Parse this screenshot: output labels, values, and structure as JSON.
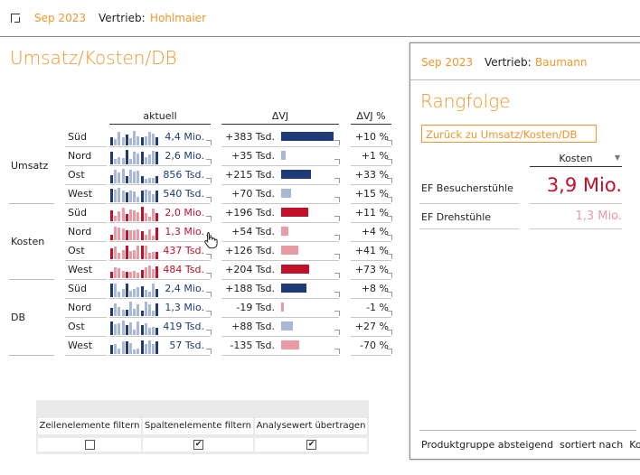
{
  "header": {
    "period": "Sep 2023",
    "label": "Vertrieb:",
    "person": "Hohlmaier"
  },
  "main": {
    "title": "Umsatz/Kosten/DB",
    "columns": {
      "aktuell": "aktuell",
      "dvj": "ΔVJ",
      "dvjpct": "ΔVJ %"
    },
    "groups": [
      {
        "name": "Umsatz",
        "rows": [
          {
            "region": "Süd",
            "aktuell": "4,4 Mio.",
            "dvj": "+383 Tsd.",
            "dvjpct": "+10 %",
            "dvj_num": 383,
            "tone": "blue"
          },
          {
            "region": "Nord",
            "aktuell": "2,6 Mio.",
            "dvj": "+35 Tsd.",
            "dvjpct": "+1 %",
            "dvj_num": 35,
            "tone": "blue"
          },
          {
            "region": "Ost",
            "aktuell": "856 Tsd.",
            "dvj": "+215 Tsd.",
            "dvjpct": "+33 %",
            "dvj_num": 215,
            "tone": "blue"
          },
          {
            "region": "West",
            "aktuell": "540 Tsd.",
            "dvj": "+70 Tsd.",
            "dvjpct": "+15 %",
            "dvj_num": 70,
            "tone": "blue"
          }
        ]
      },
      {
        "name": "Kosten",
        "rows": [
          {
            "region": "Süd",
            "aktuell": "2,0 Mio.",
            "dvj": "+196 Tsd.",
            "dvjpct": "+11 %",
            "dvj_num": 196,
            "tone": "red"
          },
          {
            "region": "Nord",
            "aktuell": "1,3 Mio.",
            "dvj": "+54 Tsd.",
            "dvjpct": "+4 %",
            "dvj_num": 54,
            "tone": "red"
          },
          {
            "region": "Ost",
            "aktuell": "437 Tsd.",
            "dvj": "+126 Tsd.",
            "dvjpct": "+41 %",
            "dvj_num": 126,
            "tone": "red"
          },
          {
            "region": "West",
            "aktuell": "484 Tsd.",
            "dvj": "+204 Tsd.",
            "dvjpct": "+73 %",
            "dvj_num": 204,
            "tone": "red"
          }
        ]
      },
      {
        "name": "DB",
        "rows": [
          {
            "region": "Süd",
            "aktuell": "2,4 Mio.",
            "dvj": "+188 Tsd.",
            "dvjpct": "+8 %",
            "dvj_num": 188,
            "tone": "blue"
          },
          {
            "region": "Nord",
            "aktuell": "1,3 Mio.",
            "dvj": "-19 Tsd.",
            "dvjpct": "-1 %",
            "dvj_num": -19,
            "tone": "blue"
          },
          {
            "region": "Ost",
            "aktuell": "419 Tsd.",
            "dvj": "+88 Tsd.",
            "dvjpct": "+27 %",
            "dvj_num": 88,
            "tone": "blue"
          },
          {
            "region": "West",
            "aktuell": "57 Tsd.",
            "dvj": "-135 Tsd.",
            "dvjpct": "-70 %",
            "dvj_num": -135,
            "tone": "blue"
          }
        ]
      }
    ]
  },
  "options": {
    "headers": [
      "Zeilenelemente filtern",
      "Spaltenelemente filtern",
      "Analysewert übertragen"
    ],
    "checked": [
      false,
      true,
      true
    ],
    "check_glyph": "✔"
  },
  "panel": {
    "period": "Sep 2023",
    "label": "Vertrieb:",
    "person": "Baumann",
    "title": "Rangfolge",
    "back_button": "Zurück zu Umsatz/Kosten/DB",
    "column": "Kosten",
    "sort_icon": "▼",
    "rows": [
      {
        "name": "EF Besucherstühle",
        "value": "3,9 Mio."
      },
      {
        "name": "EF Drehstühle",
        "value": "1,3 Mio."
      }
    ],
    "footer": "Produktgruppe absteigend  sortiert nach  Kos"
  },
  "colors": {
    "accent": "#f0962a",
    "blue_strong": "#1f3a78",
    "blue_light": "#a9b8d6",
    "red_strong": "#c0102a",
    "red_light": "#e89aa5"
  }
}
